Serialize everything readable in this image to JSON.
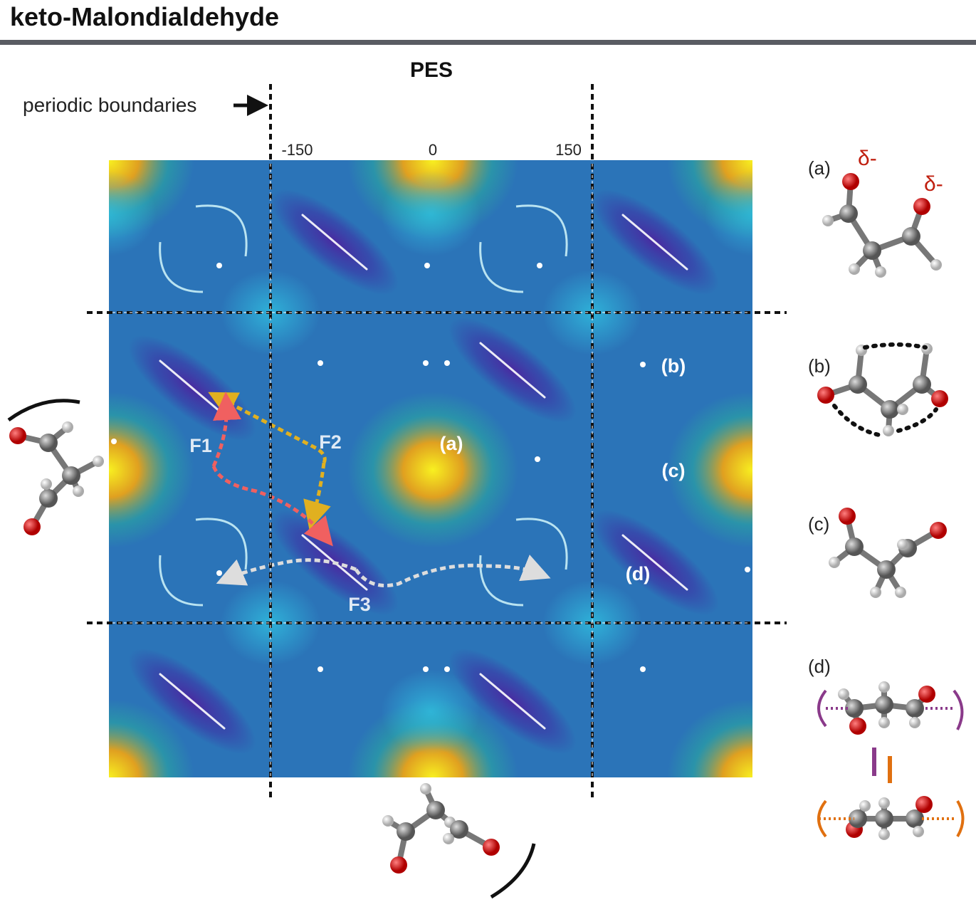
{
  "header": {
    "title": "keto-Malondialdehyde"
  },
  "pes": {
    "title": "PES",
    "boundary_label": "periodic boundaries",
    "ticks": [
      -150,
      0,
      150
    ],
    "regions": [
      {
        "label": "(a)"
      },
      {
        "label": "(b)"
      },
      {
        "label": "(c)"
      },
      {
        "label": "(d)"
      }
    ],
    "paths": [
      {
        "label": "F1"
      },
      {
        "label": "F2"
      },
      {
        "label": "F3"
      }
    ]
  },
  "structures": [
    {
      "label": "(a)"
    },
    {
      "label": "(b)"
    },
    {
      "label": "(c)"
    },
    {
      "label": "(d)"
    }
  ],
  "charges": [
    "δ-",
    "δ-"
  ]
}
